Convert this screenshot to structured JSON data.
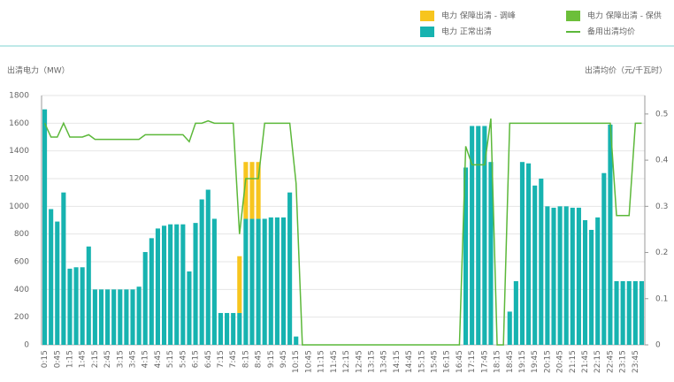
{
  "chart_data": {
    "type": "bar",
    "y_title": "出清电力（MW）",
    "y2_title": "出清均价（元/千瓦时）",
    "categories": [
      "0:15",
      null,
      "0:45",
      null,
      "1:15",
      null,
      "1:45",
      null,
      "2:15",
      null,
      "2:45",
      null,
      "3:15",
      null,
      "3:45",
      null,
      "4:15",
      null,
      "4:45",
      null,
      "5:15",
      null,
      "5:45",
      null,
      "6:15",
      null,
      "6:45",
      null,
      "7:15",
      null,
      "7:45",
      null,
      "8:15",
      null,
      "8:45",
      null,
      "9:15",
      null,
      "9:45",
      null,
      "10:15",
      null,
      "10:45",
      null,
      "11:15",
      null,
      "11:45",
      null,
      "12:15",
      null,
      "12:45",
      null,
      "13:15",
      null,
      "13:45",
      null,
      "14:15",
      null,
      "14:45",
      null,
      "15:15",
      null,
      "15:45",
      null,
      "16:15",
      null,
      "16:45",
      null,
      "17:15",
      null,
      "17:45",
      null,
      "18:15",
      null,
      "18:45",
      null,
      "19:15",
      null,
      "19:45",
      null,
      "20:15",
      null,
      "20:45",
      null,
      "21:15",
      null,
      "21:45",
      null,
      "22:15",
      null,
      "22:45",
      null,
      "23:15",
      null,
      "23:45",
      null
    ],
    "series": [
      {
        "name": "电力 正常出清",
        "color": "#17b3b0",
        "values": [
          1700,
          980,
          890,
          1100,
          550,
          560,
          560,
          710,
          400,
          400,
          400,
          400,
          400,
          400,
          400,
          420,
          670,
          770,
          840,
          860,
          870,
          870,
          870,
          530,
          880,
          1050,
          1120,
          910,
          230,
          230,
          230,
          230,
          910,
          910,
          910,
          910,
          920,
          920,
          920,
          1100,
          60,
          0,
          0,
          0,
          0,
          0,
          0,
          0,
          0,
          0,
          0,
          0,
          0,
          0,
          0,
          0,
          0,
          0,
          0,
          0,
          0,
          0,
          0,
          0,
          0,
          0,
          0,
          1280,
          1580,
          1580,
          1580,
          1320,
          0,
          0,
          240,
          460,
          1320,
          1310,
          1150,
          1200,
          1000,
          990,
          1000,
          1000,
          990,
          990,
          900,
          830,
          920,
          1240,
          1590,
          460,
          460,
          460,
          460,
          460
        ]
      },
      {
        "name": "电力 保障出清 - 调峰",
        "color": "#f7c51e",
        "values": [
          0,
          0,
          0,
          0,
          0,
          0,
          0,
          0,
          0,
          0,
          0,
          0,
          0,
          0,
          0,
          0,
          0,
          0,
          0,
          0,
          0,
          0,
          0,
          0,
          0,
          0,
          0,
          0,
          0,
          0,
          0,
          410,
          410,
          410,
          410,
          0,
          0,
          0,
          0,
          0,
          0,
          0,
          0,
          0,
          0,
          0,
          0,
          0,
          0,
          0,
          0,
          0,
          0,
          0,
          0,
          0,
          0,
          0,
          0,
          0,
          0,
          0,
          0,
          0,
          0,
          0,
          0,
          0,
          0,
          0,
          0,
          0,
          0,
          0,
          0,
          0,
          0,
          0,
          0,
          0,
          0,
          0,
          0,
          0,
          0,
          0,
          0,
          0,
          0,
          0,
          0,
          0,
          0,
          0,
          0,
          0
        ]
      },
      {
        "name": "电力 保障出清 - 保供",
        "color": "#6cbf3a",
        "values": [
          0,
          0,
          0,
          0,
          0,
          0,
          0,
          0,
          0,
          0,
          0,
          0,
          0,
          0,
          0,
          0,
          0,
          0,
          0,
          0,
          0,
          0,
          0,
          0,
          0,
          0,
          0,
          0,
          0,
          0,
          0,
          0,
          0,
          0,
          0,
          0,
          0,
          0,
          0,
          0,
          0,
          0,
          0,
          0,
          0,
          0,
          0,
          0,
          0,
          0,
          0,
          0,
          0,
          0,
          0,
          0,
          0,
          0,
          0,
          0,
          0,
          0,
          0,
          0,
          0,
          0,
          0,
          0,
          0,
          0,
          0,
          0,
          0,
          0,
          0,
          0,
          0,
          0,
          0,
          0,
          0,
          0,
          0,
          0,
          0,
          0,
          0,
          0,
          0,
          0,
          0,
          0,
          0,
          0,
          0,
          0
        ]
      },
      {
        "name": "备用出清均价",
        "type": "line",
        "axis": "y2",
        "color": "#5cb83a",
        "values": [
          0.48,
          0.45,
          0.45,
          0.48,
          0.45,
          0.45,
          0.45,
          0.455,
          0.445,
          0.445,
          0.445,
          0.445,
          0.445,
          0.445,
          0.445,
          0.445,
          0.455,
          0.455,
          0.455,
          0.455,
          0.455,
          0.455,
          0.455,
          0.44,
          0.48,
          0.48,
          0.485,
          0.48,
          0.48,
          0.48,
          0.48,
          0.24,
          0.36,
          0.36,
          0.36,
          0.48,
          0.48,
          0.48,
          0.48,
          0.48,
          0.35,
          0,
          0,
          0,
          0,
          0,
          0,
          0,
          0,
          0,
          0,
          0,
          0,
          0,
          0,
          0,
          0,
          0,
          0,
          0,
          0,
          0,
          0,
          0,
          0,
          0,
          0,
          0.43,
          0.39,
          0.39,
          0.39,
          0.49,
          0,
          0,
          0.48,
          0.48,
          0.48,
          0.48,
          0.48,
          0.48,
          0.48,
          0.48,
          0.48,
          0.48,
          0.48,
          0.48,
          0.48,
          0.48,
          0.48,
          0.48,
          0.48,
          0.28,
          0.28,
          0.28,
          0.48,
          0.48
        ]
      }
    ],
    "ylim": [
      0,
      1800
    ],
    "yticks": [
      0,
      200,
      400,
      600,
      800,
      1000,
      1200,
      1400,
      1600,
      1800
    ],
    "y2lim": [
      0,
      0.54
    ],
    "y2ticks": [
      0,
      0.1,
      0.2,
      0.3,
      0.4,
      0.5
    ],
    "grid": true,
    "legend": "top-right"
  }
}
